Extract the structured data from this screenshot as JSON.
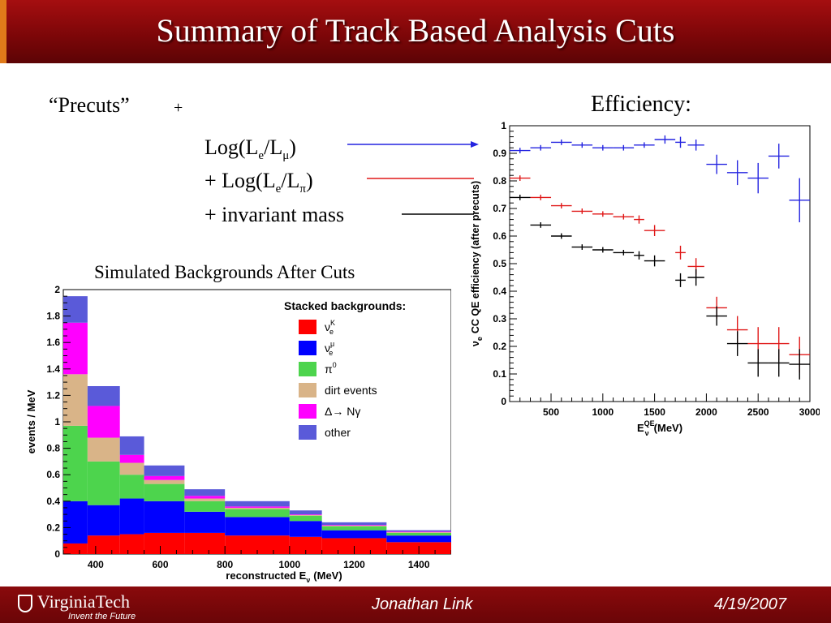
{
  "slide": {
    "title": "Summary of Track Based Analysis Cuts",
    "precuts": "“Precuts”",
    "plus": "+",
    "cut1": {
      "prefix": "Log(L",
      "sub1": "e",
      "mid": "/L",
      "sub2": "μ",
      "suffix": ")"
    },
    "cut2": {
      "prefix": "+ Log(L",
      "sub1": "e",
      "mid": "/L",
      "sub2": "π",
      "suffix": ")"
    },
    "cut3": "+ invariant mass",
    "efficiency_label": "Efficiency:",
    "backgrounds_label": "Simulated Backgrounds After Cuts",
    "footer": {
      "logo": "VirginiaTech",
      "logo_tagline": "Invent the Future",
      "author": "Jonathan Link",
      "date": "4/19/2007"
    }
  },
  "colors": {
    "blue": "#2424e0",
    "red": "#e01818",
    "black": "#000000",
    "nue_k": "#ff0000",
    "nue_mu": "#0000ff",
    "pi0": "#4dd44d",
    "dirt": "#d9b488",
    "delta": "#ff00ff",
    "other": "#5a5ad9"
  },
  "chart_data": [
    {
      "type": "scatter",
      "xlabel": "E",
      "xlabel_sup": "QE",
      "xlabel_sub": "ν",
      "xlabel_unit": "(MeV)",
      "ylabel": "ν",
      "ylabel_sub": "e",
      "ylabel_rest": "CC QE efficiency (after precuts)",
      "xlim": [
        100,
        3000
      ],
      "ylim": [
        0,
        1
      ],
      "xticks": [
        "500",
        "1000",
        "1500",
        "2000",
        "2500",
        "3000"
      ],
      "yticks": [
        "0",
        "0.1",
        "0.2",
        "0.3",
        "0.4",
        "0.5",
        "0.6",
        "0.7",
        "0.8",
        "0.9",
        "1"
      ],
      "series": [
        {
          "color": "blue",
          "points": [
            [
              200,
              0.91,
              100,
              0.01
            ],
            [
              400,
              0.92,
              100,
              0.01
            ],
            [
              600,
              0.94,
              100,
              0.01
            ],
            [
              800,
              0.93,
              100,
              0.01
            ],
            [
              1000,
              0.92,
              100,
              0.01
            ],
            [
              1200,
              0.92,
              100,
              0.01
            ],
            [
              1400,
              0.93,
              100,
              0.01
            ],
            [
              1600,
              0.95,
              100,
              0.015
            ],
            [
              1750,
              0.94,
              50,
              0.02
            ],
            [
              1900,
              0.93,
              80,
              0.02
            ],
            [
              2100,
              0.86,
              100,
              0.035
            ],
            [
              2300,
              0.83,
              100,
              0.045
            ],
            [
              2500,
              0.81,
              100,
              0.055
            ],
            [
              2700,
              0.89,
              100,
              0.045
            ],
            [
              2900,
              0.73,
              100,
              0.08
            ]
          ]
        },
        {
          "color": "red",
          "points": [
            [
              200,
              0.81,
              100,
              0.01
            ],
            [
              400,
              0.74,
              100,
              0.01
            ],
            [
              600,
              0.71,
              100,
              0.01
            ],
            [
              800,
              0.69,
              100,
              0.01
            ],
            [
              1000,
              0.68,
              100,
              0.01
            ],
            [
              1200,
              0.67,
              100,
              0.01
            ],
            [
              1350,
              0.66,
              50,
              0.015
            ],
            [
              1500,
              0.62,
              100,
              0.02
            ],
            [
              1750,
              0.54,
              50,
              0.025
            ],
            [
              1900,
              0.49,
              80,
              0.03
            ],
            [
              2100,
              0.34,
              100,
              0.04
            ],
            [
              2300,
              0.26,
              100,
              0.05
            ],
            [
              2500,
              0.21,
              100,
              0.06
            ],
            [
              2700,
              0.21,
              100,
              0.06
            ],
            [
              2900,
              0.17,
              100,
              0.065
            ]
          ]
        },
        {
          "color": "black",
          "points": [
            [
              200,
              0.74,
              100,
              0.01
            ],
            [
              400,
              0.64,
              100,
              0.01
            ],
            [
              600,
              0.6,
              100,
              0.01
            ],
            [
              800,
              0.56,
              100,
              0.01
            ],
            [
              1000,
              0.55,
              100,
              0.01
            ],
            [
              1200,
              0.54,
              100,
              0.01
            ],
            [
              1350,
              0.53,
              50,
              0.015
            ],
            [
              1500,
              0.51,
              100,
              0.02
            ],
            [
              1750,
              0.44,
              50,
              0.025
            ],
            [
              1900,
              0.45,
              80,
              0.03
            ],
            [
              2100,
              0.31,
              100,
              0.035
            ],
            [
              2300,
              0.21,
              100,
              0.045
            ],
            [
              2500,
              0.14,
              100,
              0.05
            ],
            [
              2700,
              0.14,
              100,
              0.05
            ],
            [
              2900,
              0.135,
              100,
              0.055
            ]
          ]
        }
      ]
    },
    {
      "type": "stacked_histogram",
      "ylabel": "events / MeV",
      "xlabel": "reconstructed E",
      "xlabel_sub": "ν",
      "xlabel_unit": "(MeV)",
      "xlim": [
        300,
        1500
      ],
      "ylim": [
        0,
        2
      ],
      "xticks": [
        "400",
        "600",
        "800",
        "1000",
        "1200",
        "1400"
      ],
      "yticks": [
        "0",
        "0.2",
        "0.4",
        "0.6",
        "0.8",
        "1",
        "1.2",
        "1.4",
        "1.6",
        "1.8",
        "2"
      ],
      "bin_edges": [
        300,
        375,
        475,
        550,
        675,
        800,
        1000,
        1100,
        1300,
        1500
      ],
      "legend_title": "Stacked backgrounds:",
      "components": [
        {
          "label": "ν",
          "label_sup": "K",
          "label_sub": "e",
          "color": "nue_k",
          "values": [
            0.08,
            0.14,
            0.15,
            0.16,
            0.16,
            0.14,
            0.13,
            0.12,
            0.09
          ]
        },
        {
          "label": "ν",
          "label_sup": "μ",
          "label_sub": "e",
          "color": "nue_mu",
          "values": [
            0.32,
            0.23,
            0.27,
            0.24,
            0.16,
            0.14,
            0.12,
            0.06,
            0.05
          ]
        },
        {
          "label": "π",
          "label_sup": "0",
          "label_sub": "",
          "color": "pi0",
          "values": [
            0.57,
            0.33,
            0.18,
            0.13,
            0.08,
            0.06,
            0.04,
            0.03,
            0.02
          ]
        },
        {
          "label": "dirt events",
          "label_sup": "",
          "label_sub": "",
          "color": "dirt",
          "values": [
            0.39,
            0.18,
            0.09,
            0.03,
            0.02,
            0.01,
            0.005,
            0.005,
            0.005
          ]
        },
        {
          "label": "Δ→ Nγ",
          "label_sup": "",
          "label_sub": "",
          "color": "delta",
          "values": [
            0.39,
            0.24,
            0.06,
            0.03,
            0.02,
            0.01,
            0.005,
            0.005,
            0.005
          ]
        },
        {
          "label": "other",
          "label_sup": "",
          "label_sub": "",
          "color": "other",
          "values": [
            0.2,
            0.15,
            0.14,
            0.08,
            0.05,
            0.04,
            0.03,
            0.02,
            0.01
          ]
        }
      ]
    }
  ]
}
